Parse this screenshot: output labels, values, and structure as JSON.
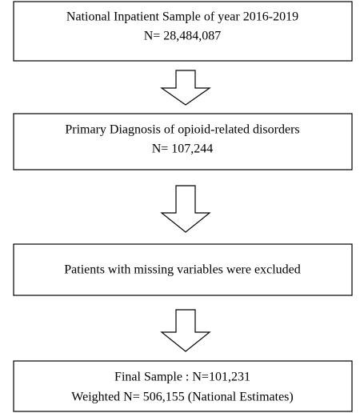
{
  "nodes": [
    {
      "lines": [
        "National Inpatient Sample of year 2016-2019",
        "N= 28,484,087"
      ]
    },
    {
      "lines": [
        "Primary Diagnosis of opioid-related disorders",
        "N= 107,244"
      ]
    },
    {
      "lines": [
        "Patients with missing variables were excluded"
      ]
    },
    {
      "lines": [
        "Final Sample : N=101,231",
        "Weighted N= 506,155 (National Estimates)"
      ]
    }
  ]
}
